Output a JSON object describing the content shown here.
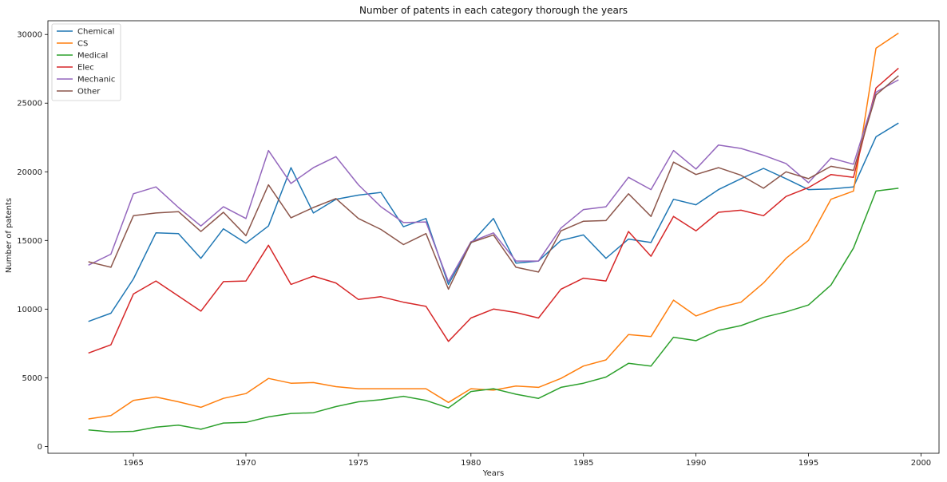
{
  "chart_data": {
    "type": "line",
    "title": "Number of patents in each category thorough the years",
    "xlabel": "Years",
    "ylabel": "Number of patents",
    "xlim": [
      1961.2,
      2000.8
    ],
    "ylim": [
      -500,
      31000
    ],
    "x_ticks": [
      1965,
      1970,
      1975,
      1980,
      1985,
      1990,
      1995,
      2000
    ],
    "y_ticks": [
      0,
      5000,
      10000,
      15000,
      20000,
      25000,
      30000
    ],
    "grid": false,
    "legend_position": "top-left",
    "x": [
      1963,
      1964,
      1965,
      1966,
      1967,
      1968,
      1969,
      1970,
      1971,
      1972,
      1973,
      1974,
      1975,
      1976,
      1977,
      1978,
      1979,
      1980,
      1981,
      1982,
      1983,
      1984,
      1985,
      1986,
      1987,
      1988,
      1989,
      1990,
      1991,
      1992,
      1993,
      1994,
      1995,
      1996,
      1997,
      1998,
      1999
    ],
    "series": [
      {
        "name": "Chemical",
        "color": "#1f77b4",
        "values": [
          9100,
          9700,
          12200,
          15550,
          15500,
          13700,
          15850,
          14800,
          16050,
          20300,
          17000,
          18000,
          18300,
          18500,
          16000,
          16600,
          11800,
          14800,
          16600,
          13350,
          13500,
          15000,
          15400,
          13700,
          15100,
          14850,
          18000,
          17600,
          18700,
          19500,
          20250,
          19500,
          18700,
          18750,
          18900,
          22550,
          23550
        ]
      },
      {
        "name": "CS",
        "color": "#ff7f0e",
        "values": [
          2000,
          2250,
          3350,
          3600,
          3250,
          2850,
          3500,
          3850,
          4950,
          4600,
          4650,
          4350,
          4200,
          4200,
          4200,
          4200,
          3200,
          4200,
          4100,
          4400,
          4300,
          4950,
          5850,
          6300,
          8150,
          8000,
          10650,
          9500,
          10100,
          10500,
          11900,
          13700,
          15000,
          18000,
          18600,
          29000,
          30100
        ]
      },
      {
        "name": "Medical",
        "color": "#2ca02c",
        "values": [
          1200,
          1050,
          1100,
          1400,
          1550,
          1250,
          1700,
          1750,
          2150,
          2400,
          2450,
          2900,
          3250,
          3400,
          3650,
          3350,
          2800,
          4000,
          4200,
          3800,
          3500,
          4300,
          4600,
          5050,
          6050,
          5850,
          7950,
          7700,
          8450,
          8800,
          9400,
          9800,
          10300,
          11750,
          14450,
          18600,
          18800
        ]
      },
      {
        "name": "Elec",
        "color": "#d62728",
        "values": [
          6800,
          7400,
          11100,
          12050,
          10950,
          9850,
          12000,
          12050,
          14650,
          11800,
          12400,
          11900,
          10700,
          10900,
          10500,
          10200,
          7650,
          9350,
          10000,
          9750,
          9350,
          11450,
          12250,
          12050,
          15650,
          13850,
          16750,
          15700,
          17050,
          17200,
          16800,
          18200,
          18850,
          19800,
          19600,
          26100,
          27550
        ]
      },
      {
        "name": "Mechanic",
        "color": "#9467bd",
        "values": [
          13200,
          14000,
          18400,
          18900,
          17400,
          16050,
          17450,
          16600,
          21550,
          19150,
          20300,
          21100,
          19050,
          17450,
          16300,
          16350,
          12000,
          14900,
          15550,
          13500,
          13500,
          15900,
          17250,
          17450,
          19600,
          18700,
          21550,
          20200,
          21950,
          21700,
          21200,
          20600,
          19200,
          21000,
          20550,
          25800,
          26700
        ]
      },
      {
        "name": "Other",
        "color": "#8c564b",
        "values": [
          13450,
          13050,
          16800,
          17000,
          17100,
          15650,
          17050,
          15350,
          19050,
          16650,
          17400,
          18050,
          16600,
          15800,
          14700,
          15500,
          11450,
          14850,
          15400,
          13050,
          12700,
          15700,
          16400,
          16450,
          18400,
          16750,
          20700,
          19800,
          20300,
          19750,
          18800,
          20000,
          19500,
          20400,
          20100,
          25600,
          27000
        ]
      }
    ]
  }
}
